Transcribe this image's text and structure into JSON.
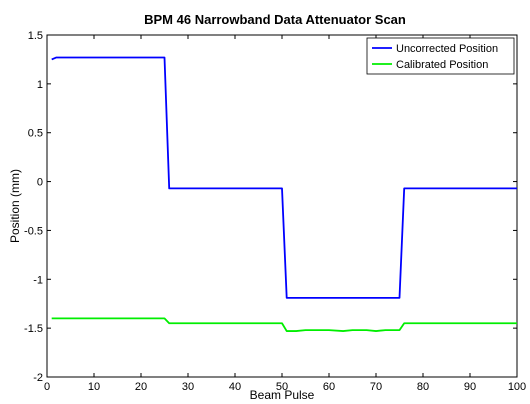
{
  "chart_data": {
    "type": "line",
    "title": "BPM 46 Narrowband Data Attenuator Scan",
    "xlabel": "Beam Pulse",
    "ylabel": "Position (mm)",
    "xlim": [
      0,
      100
    ],
    "ylim": [
      -2,
      1.5
    ],
    "xticks": [
      0,
      10,
      20,
      30,
      40,
      50,
      60,
      70,
      80,
      90,
      100
    ],
    "yticks": [
      -2,
      -1.5,
      -1,
      -0.5,
      0,
      0.5,
      1,
      1.5
    ],
    "ytick_labels": [
      "-2",
      "-1.5",
      "-1",
      "-0.5",
      "0",
      "0.5",
      "1",
      "1.5"
    ],
    "legend_position": "top-right",
    "grid": false,
    "series": [
      {
        "name": "Uncorrected Position",
        "color": "#0000ff",
        "x": [
          1,
          2,
          25,
          26,
          50,
          51,
          75,
          76,
          100
        ],
        "y": [
          1.25,
          1.27,
          1.27,
          -0.07,
          -0.07,
          -1.19,
          -1.19,
          -0.07,
          -0.07
        ]
      },
      {
        "name": "Calibrated Position",
        "color": "#00ee00",
        "x": [
          1,
          25,
          26,
          50,
          51,
          53,
          55,
          57,
          60,
          63,
          65,
          68,
          70,
          72,
          75,
          76,
          100
        ],
        "y": [
          -1.4,
          -1.4,
          -1.45,
          -1.45,
          -1.53,
          -1.53,
          -1.52,
          -1.52,
          -1.52,
          -1.53,
          -1.52,
          -1.52,
          -1.53,
          -1.52,
          -1.52,
          -1.45,
          -1.45
        ]
      }
    ]
  }
}
